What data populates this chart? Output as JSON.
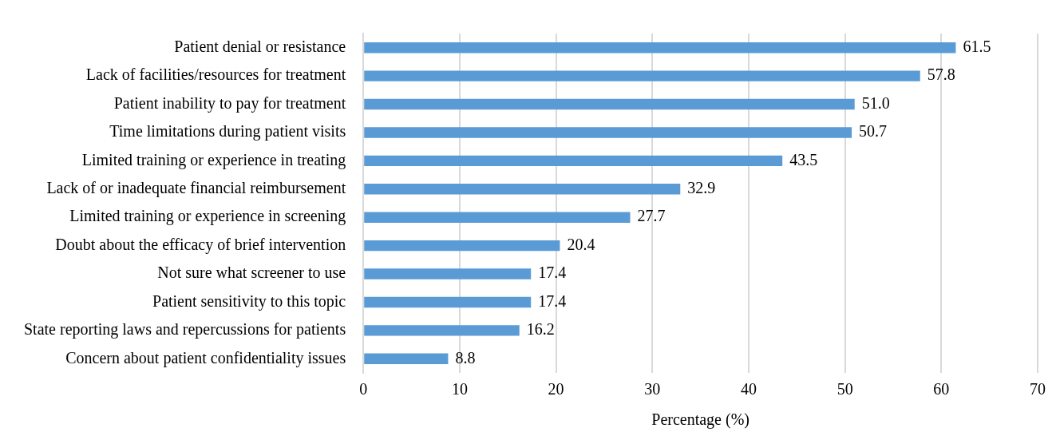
{
  "chart_data": {
    "type": "bar",
    "orientation": "horizontal",
    "xlabel": "Percentage (%)",
    "categories": [
      "Patient denial or resistance",
      "Lack of facilities/resources for treatment",
      "Patient inability to pay for treatment",
      "Time limitations during patient visits",
      "Limited training or experience in treating",
      "Lack of or inadequate financial reimbursement",
      "Limited training or experience in screening",
      "Doubt about the efficacy of brief intervention",
      "Not sure what screener to use",
      "Patient sensitivity to this topic",
      "State reporting laws and repercussions for patients",
      "Concern about patient confidentiality issues"
    ],
    "values": [
      61.5,
      57.8,
      51.0,
      50.7,
      43.5,
      32.9,
      27.7,
      20.4,
      17.4,
      17.4,
      16.2,
      8.8
    ],
    "value_labels": [
      "61.5",
      "57.8",
      "51.0",
      "50.7",
      "43.5",
      "32.9",
      "27.7",
      "20.4",
      "17.4",
      "17.4",
      "16.2",
      "8.8"
    ],
    "color": "#5b9bd5",
    "xlim": [
      0,
      70
    ],
    "xticks": [
      0,
      10,
      20,
      30,
      40,
      50,
      60,
      70
    ],
    "grid": "x",
    "legend": false
  }
}
